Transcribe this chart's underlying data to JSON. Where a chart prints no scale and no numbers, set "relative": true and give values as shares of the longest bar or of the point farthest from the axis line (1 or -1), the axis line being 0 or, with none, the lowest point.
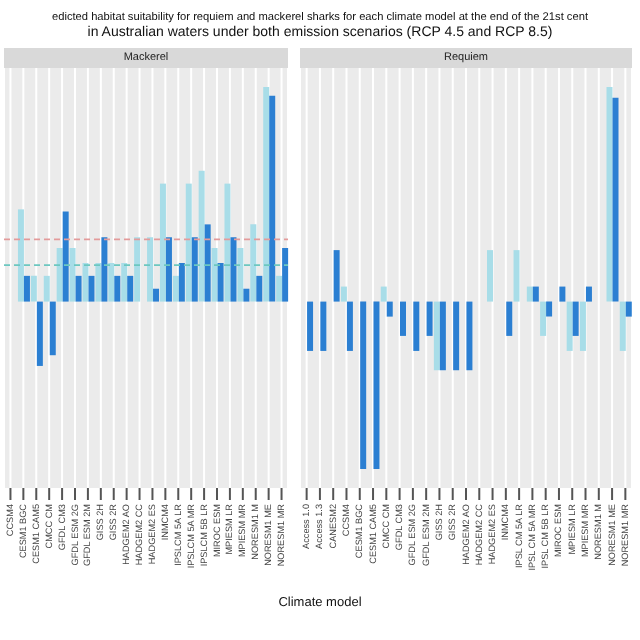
{
  "chart_data": [
    {
      "type": "bar",
      "title": "edicted habitat suitability for requiem and mackerel sharks for each climate model at the end of the 21st cent",
      "subtitle": "in Australian waters under both emission scenarios (RCP 4.5 and RCP 8.5)",
      "xlabel": "Climate model",
      "annotations": [
        "Mackerel"
      ],
      "relative": true,
      "grid": "x",
      "legend": false,
      "categories": [
        "CCSM4",
        "CESM1 BGC",
        "CESM1 CAM5",
        "CMCC CM",
        "GFDL CM3",
        "GFDL ESM 2G",
        "GFDL ESM 2M",
        "GISS 2H",
        "GISS 2R",
        "HADGEM2 AO",
        "HADGEM2 CC",
        "HADGEM2 ES",
        "INMCM4",
        "IPSLCM 5A LR",
        "IPSLCM 5A MR",
        "IPSLCM 5B LR",
        "MIROC ESM",
        "MPIESM LR",
        "MPIESM MR",
        "NORESM1 M",
        "NORESM1 ME",
        "NORESM1 MR"
      ],
      "series": [
        {
          "color": "#a8dde8",
          "values": [
            null,
            0.43,
            0.12,
            0.12,
            0.25,
            0.25,
            0.18,
            0.18,
            0.18,
            0.18,
            0.3,
            0.3,
            0.55,
            0.12,
            0.55,
            0.61,
            0.25,
            0.55,
            0.25,
            0.36,
            1.0,
            0.12
          ]
        },
        {
          "color": "#2b7fd2",
          "values": [
            null,
            0.12,
            -0.3,
            -0.25,
            0.42,
            0.12,
            0.12,
            0.3,
            0.12,
            0.12,
            0,
            0.06,
            0.3,
            0.18,
            0.3,
            0.36,
            0.18,
            0.3,
            0.06,
            0.12,
            0.96,
            0.25
          ]
        }
      ],
      "ref_lines": [
        {
          "axis": "y",
          "value": 0.29,
          "color": "#e39b9b",
          "line_style": "dashed"
        },
        {
          "axis": "y",
          "value": 0.17,
          "color": "#6cc7c0",
          "line_style": "dashed"
        }
      ]
    },
    {
      "type": "bar",
      "relative": true,
      "grid": "x",
      "legend": false,
      "annotations": [
        "Requiem"
      ],
      "categories": [
        "Access 1.0",
        "Access 1.3",
        "CANESM2",
        "CCSM4",
        "CESM1 BGC",
        "CESM1 CAM5",
        "CMCC CM",
        "GFDL CM3",
        "GFDL ESM 2G",
        "GFDL ESM 2M",
        "GISS 2H",
        "GISS 2R",
        "HADGEM2 AO",
        "HADGEM2 CC",
        "HADGEM2 ES",
        "INMCM4",
        "IPSL CM 5A LR",
        "IPSL CM 5A MR",
        "IPSL CM 5B LR",
        "MIROC ESM",
        "MPIESM LR",
        "MPIESM MR",
        "NORESM1 M",
        "NORESM1 ME",
        "NORESM1 MR"
      ],
      "series": [
        {
          "color": "#a8dde8",
          "values": [
            0,
            0,
            0,
            0.07,
            0,
            0,
            0.07,
            0,
            0,
            0,
            -0.32,
            0,
            0,
            0,
            0.24,
            0,
            0.24,
            0.07,
            -0.16,
            0,
            -0.23,
            -0.23,
            0,
            1.0,
            -0.23
          ]
        },
        {
          "color": "#2b7fd2",
          "values": [
            -0.23,
            -0.23,
            0.24,
            -0.23,
            -0.78,
            -0.78,
            -0.07,
            -0.16,
            -0.23,
            -0.16,
            -0.32,
            -0.32,
            -0.32,
            0,
            0,
            -0.16,
            0,
            0.07,
            -0.07,
            0.07,
            -0.16,
            0.07,
            0,
            0.95,
            -0.07
          ]
        }
      ]
    }
  ]
}
